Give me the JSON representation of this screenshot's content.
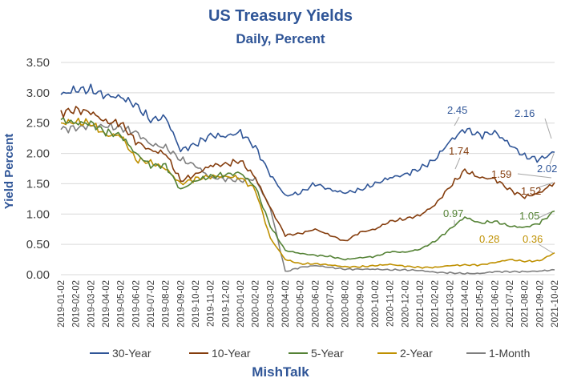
{
  "chart_data": {
    "type": "line",
    "title": "US Treasury Yields",
    "subtitle": "Daily, Percent",
    "ylabel": "Yield Percent",
    "xlabel": "",
    "ylim": [
      0,
      3.5
    ],
    "yticks": [
      "0.00",
      "0.50",
      "1.00",
      "1.50",
      "2.00",
      "2.50",
      "3.00",
      "3.50"
    ],
    "x_tick_labels": [
      "2019-01-02",
      "2019-02-02",
      "2019-03-02",
      "2019-04-02",
      "2019-05-02",
      "2019-06-02",
      "2019-07-02",
      "2019-08-02",
      "2019-09-02",
      "2019-10-02",
      "2019-11-02",
      "2019-12-02",
      "2020-01-02",
      "2020-02-02",
      "2020-03-02",
      "2020-04-02",
      "2020-05-02",
      "2020-06-02",
      "2020-07-02",
      "2020-08-02",
      "2020-09-02",
      "2020-10-02",
      "2020-11-02",
      "2020-12-02",
      "2021-01-02",
      "2021-02-02",
      "2021-03-02",
      "2021-04-02",
      "2021-05-02",
      "2021-06-02",
      "2021-07-02",
      "2021-08-02",
      "2021-09-02",
      "2021-10-02"
    ],
    "grid": "horizontal",
    "legend_position": "bottom",
    "x_month_points": [
      "2019-01",
      "2019-02",
      "2019-03",
      "2019-04",
      "2019-05",
      "2019-06",
      "2019-07",
      "2019-08",
      "2019-09",
      "2019-10",
      "2019-11",
      "2019-12",
      "2020-01",
      "2020-02",
      "2020-03",
      "2020-04",
      "2020-05",
      "2020-06",
      "2020-07",
      "2020-08",
      "2020-09",
      "2020-10",
      "2020-11",
      "2020-12",
      "2021-01",
      "2021-02",
      "2021-03",
      "2021-04",
      "2021-05",
      "2021-06",
      "2021-07",
      "2021-08",
      "2021-09",
      "2021-10"
    ],
    "series": [
      {
        "name": "30-Year",
        "color": "#2F5597",
        "values": [
          2.97,
          3.05,
          3.05,
          2.95,
          2.93,
          2.8,
          2.55,
          2.6,
          2.05,
          2.15,
          2.3,
          2.28,
          2.35,
          2.1,
          1.65,
          1.3,
          1.35,
          1.5,
          1.4,
          1.35,
          1.4,
          1.5,
          1.6,
          1.65,
          1.75,
          1.9,
          2.2,
          2.4,
          2.3,
          2.35,
          2.15,
          1.95,
          1.9,
          2.02
        ]
      },
      {
        "name": "10-Year",
        "color": "#843C0C",
        "values": [
          2.67,
          2.72,
          2.68,
          2.52,
          2.5,
          2.2,
          2.05,
          2.0,
          1.55,
          1.65,
          1.8,
          1.82,
          1.88,
          1.6,
          1.1,
          0.65,
          0.68,
          0.75,
          0.65,
          0.55,
          0.7,
          0.75,
          0.88,
          0.92,
          0.98,
          1.15,
          1.45,
          1.72,
          1.6,
          1.58,
          1.4,
          1.28,
          1.35,
          1.52
        ]
      },
      {
        "name": "5-Year",
        "color": "#548235",
        "values": [
          2.55,
          2.5,
          2.5,
          2.35,
          2.3,
          2.0,
          1.8,
          1.8,
          1.4,
          1.55,
          1.62,
          1.65,
          1.68,
          1.45,
          0.8,
          0.4,
          0.35,
          0.32,
          0.3,
          0.25,
          0.28,
          0.3,
          0.38,
          0.37,
          0.42,
          0.55,
          0.75,
          0.95,
          0.85,
          0.88,
          0.8,
          0.78,
          0.85,
          1.05
        ]
      },
      {
        "name": "2-Year",
        "color": "#BF9000",
        "values": [
          2.5,
          2.52,
          2.5,
          2.3,
          2.3,
          1.9,
          1.85,
          1.75,
          1.5,
          1.58,
          1.62,
          1.62,
          1.6,
          1.4,
          0.6,
          0.25,
          0.18,
          0.18,
          0.16,
          0.13,
          0.13,
          0.15,
          0.17,
          0.14,
          0.12,
          0.12,
          0.15,
          0.16,
          0.16,
          0.2,
          0.25,
          0.22,
          0.23,
          0.36
        ]
      },
      {
        "name": "1-Month",
        "color": "#7F7F7F",
        "values": [
          2.4,
          2.42,
          2.45,
          2.45,
          2.42,
          2.35,
          2.15,
          2.1,
          1.9,
          1.8,
          1.6,
          1.58,
          1.55,
          1.58,
          1.1,
          0.05,
          0.12,
          0.15,
          0.12,
          0.09,
          0.09,
          0.09,
          0.08,
          0.08,
          0.07,
          0.04,
          0.03,
          0.02,
          0.02,
          0.05,
          0.05,
          0.05,
          0.06,
          0.08
        ]
      }
    ],
    "annotations": [
      {
        "text": "2.45",
        "series": "30-Year"
      },
      {
        "text": "2.16",
        "series": "30-Year"
      },
      {
        "text": "2.02",
        "series": "30-Year"
      },
      {
        "text": "1.74",
        "series": "10-Year"
      },
      {
        "text": "1.59",
        "series": "10-Year"
      },
      {
        "text": "1.52",
        "series": "10-Year"
      },
      {
        "text": "0.97",
        "series": "5-Year"
      },
      {
        "text": "1.05",
        "series": "5-Year"
      },
      {
        "text": "0.28",
        "series": "2-Year"
      },
      {
        "text": "0.36",
        "series": "2-Year"
      }
    ]
  },
  "footer": {
    "brand": "MishTalk"
  }
}
